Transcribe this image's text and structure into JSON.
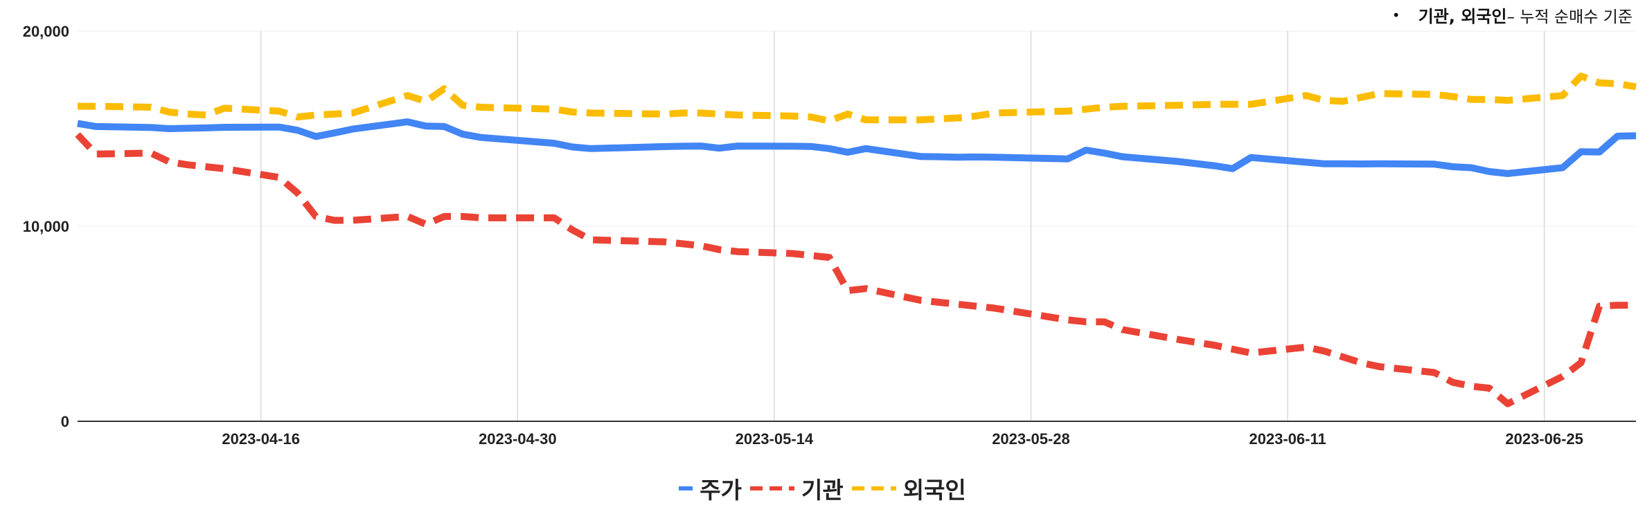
{
  "note": {
    "bullet": "•",
    "bold_text": "기관, 외국인",
    "rest_text": " – 누적 순매수 기준"
  },
  "chart_data": {
    "type": "line",
    "title": "",
    "xlabel": "",
    "ylabel": "",
    "ylim": [
      0,
      20000
    ],
    "y_ticks": [
      "0",
      "10,000",
      "20,000"
    ],
    "x_ticks": [
      "2023-04-16",
      "2023-04-30",
      "2023-05-14",
      "2023-05-28",
      "2023-06-11",
      "2023-06-25"
    ],
    "grid": "vertical at x ticks",
    "legend_position": "bottom",
    "x": [
      "2023-04-06",
      "2023-04-07",
      "2023-04-10",
      "2023-04-11",
      "2023-04-12",
      "2023-04-13",
      "2023-04-14",
      "2023-04-17",
      "2023-04-18",
      "2023-04-19",
      "2023-04-20",
      "2023-04-21",
      "2023-04-24",
      "2023-04-25",
      "2023-04-26",
      "2023-04-27",
      "2023-04-28",
      "2023-05-02",
      "2023-05-03",
      "2023-05-04",
      "2023-05-08",
      "2023-05-09",
      "2023-05-10",
      "2023-05-11",
      "2023-05-12",
      "2023-05-15",
      "2023-05-16",
      "2023-05-17",
      "2023-05-18",
      "2023-05-19",
      "2023-05-22",
      "2023-05-23",
      "2023-05-24",
      "2023-05-25",
      "2023-05-26",
      "2023-05-30",
      "2023-05-31",
      "2023-06-01",
      "2023-06-02",
      "2023-06-05",
      "2023-06-07",
      "2023-06-08",
      "2023-06-09",
      "2023-06-12",
      "2023-06-13",
      "2023-06-14",
      "2023-06-15",
      "2023-06-16",
      "2023-06-19",
      "2023-06-20",
      "2023-06-21",
      "2023-06-22",
      "2023-06-23",
      "2023-06-26",
      "2023-06-27",
      "2023-06-28",
      "2023-06-29",
      "2023-06-30"
    ],
    "series": [
      {
        "name": "주가",
        "color": "#4285F4",
        "style": "solid",
        "values": [
          15270,
          15110,
          15060,
          15000,
          15020,
          15040,
          15070,
          15080,
          14920,
          14600,
          14780,
          14980,
          15350,
          15130,
          15110,
          14720,
          14550,
          14250,
          14060,
          13980,
          14080,
          14100,
          14110,
          14000,
          14110,
          14100,
          14090,
          13980,
          13790,
          13980,
          13570,
          13560,
          13540,
          13550,
          13540,
          13450,
          13900,
          13750,
          13560,
          13320,
          13100,
          12950,
          13520,
          13280,
          13200,
          13200,
          13190,
          13200,
          13180,
          13050,
          13000,
          12800,
          12700,
          13000,
          13820,
          13800,
          14620,
          14640
        ]
      },
      {
        "name": "기관",
        "color": "#EA4335",
        "style": "dashed",
        "values": [
          14700,
          13700,
          13750,
          13300,
          13150,
          13050,
          12950,
          12500,
          11700,
          10500,
          10300,
          10300,
          10500,
          10100,
          10500,
          10500,
          10430,
          10430,
          9800,
          9300,
          9200,
          9100,
          9000,
          8800,
          8700,
          8600,
          8500,
          8400,
          6700,
          6800,
          6200,
          6100,
          6000,
          5900,
          5800,
          5200,
          5100,
          5100,
          4700,
          4200,
          3900,
          3700,
          3500,
          3800,
          3600,
          3300,
          3000,
          2800,
          2500,
          2000,
          1800,
          1700,
          900,
          2300,
          3000,
          5900,
          5950,
          5950
        ]
      },
      {
        "name": "외국인",
        "color": "#FBBC04",
        "style": "dashed",
        "values": [
          16150,
          16150,
          16100,
          15850,
          15750,
          15700,
          16050,
          15900,
          15600,
          15700,
          15750,
          15800,
          16700,
          16400,
          17050,
          16200,
          16100,
          16000,
          15850,
          15800,
          15750,
          15800,
          15800,
          15750,
          15700,
          15650,
          15600,
          15400,
          15750,
          15450,
          15450,
          15500,
          15550,
          15650,
          15800,
          15900,
          16000,
          16100,
          16150,
          16200,
          16250,
          16250,
          16250,
          16700,
          16450,
          16400,
          16600,
          16800,
          16750,
          16650,
          16500,
          16500,
          16450,
          16700,
          17700,
          17350,
          17300,
          17150
        ]
      }
    ]
  }
}
